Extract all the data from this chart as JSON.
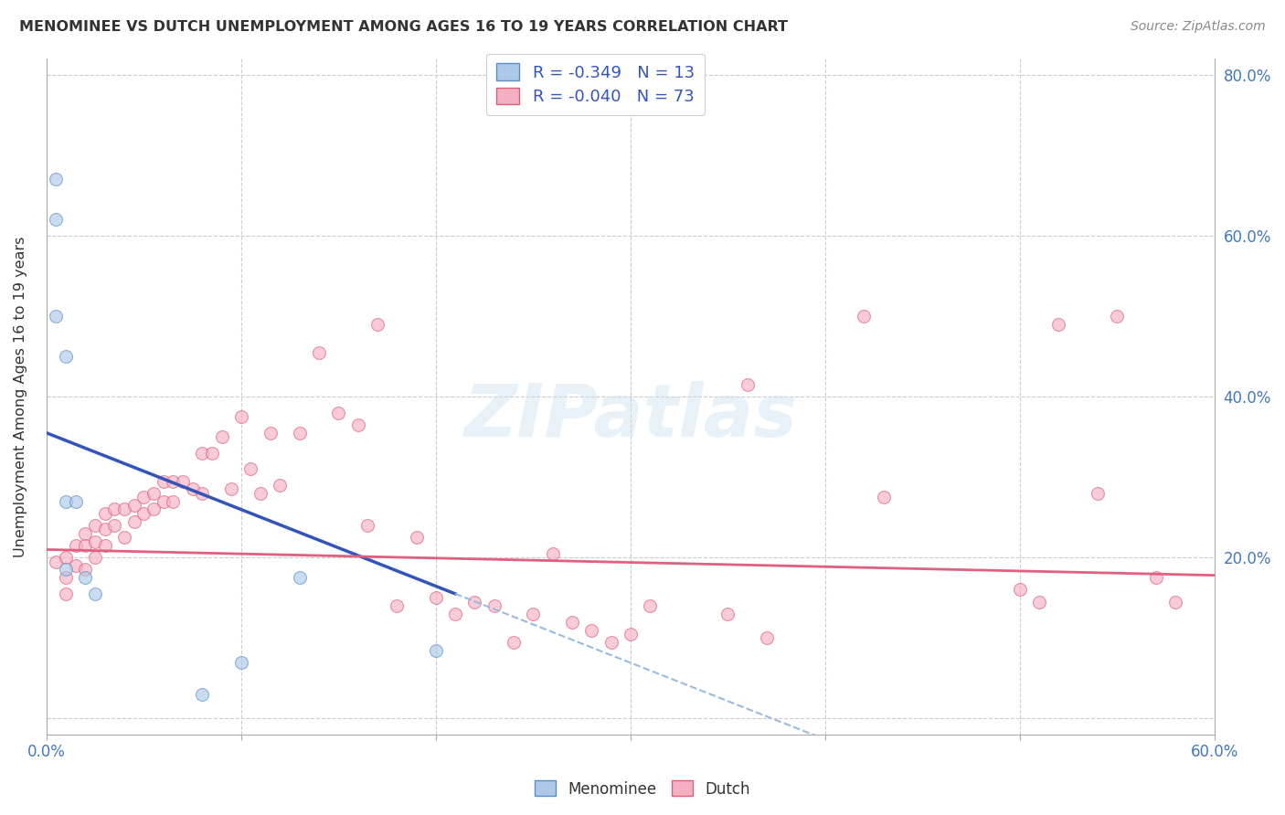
{
  "title": "MENOMINEE VS DUTCH UNEMPLOYMENT AMONG AGES 16 TO 19 YEARS CORRELATION CHART",
  "source": "Source: ZipAtlas.com",
  "ylabel": "Unemployment Among Ages 16 to 19 years",
  "xlim": [
    0.0,
    0.6
  ],
  "ylim": [
    -0.02,
    0.82
  ],
  "x_ticks": [
    0.0,
    0.1,
    0.2,
    0.3,
    0.4,
    0.5,
    0.6
  ],
  "y_ticks": [
    0.0,
    0.2,
    0.4,
    0.6,
    0.8
  ],
  "y_tick_labels_right": [
    "",
    "20.0%",
    "40.0%",
    "60.0%",
    "80.0%"
  ],
  "menominee_color": "#adc8e8",
  "dutch_color": "#f5afc3",
  "menominee_edge": "#5b8ec4",
  "dutch_edge": "#d9607a",
  "trend_menominee_color": "#3355bb",
  "trend_dutch_color": "#e06080",
  "trend_menominee_extra_color": "#99bbdd",
  "legend_R_menominee": "-0.349",
  "legend_N_menominee": "13",
  "legend_R_dutch": "-0.040",
  "legend_N_dutch": "73",
  "watermark_text": "ZIPatlas",
  "menominee_x": [
    0.005,
    0.005,
    0.005,
    0.01,
    0.01,
    0.01,
    0.015,
    0.02,
    0.025,
    0.08,
    0.1,
    0.13,
    0.2
  ],
  "menominee_y": [
    0.67,
    0.62,
    0.5,
    0.45,
    0.27,
    0.185,
    0.27,
    0.175,
    0.155,
    0.03,
    0.07,
    0.175,
    0.085
  ],
  "dutch_x": [
    0.005,
    0.01,
    0.01,
    0.01,
    0.015,
    0.015,
    0.02,
    0.02,
    0.02,
    0.025,
    0.025,
    0.025,
    0.03,
    0.03,
    0.03,
    0.035,
    0.035,
    0.04,
    0.04,
    0.045,
    0.045,
    0.05,
    0.05,
    0.055,
    0.055,
    0.06,
    0.06,
    0.065,
    0.065,
    0.07,
    0.075,
    0.08,
    0.08,
    0.085,
    0.09,
    0.095,
    0.1,
    0.105,
    0.11,
    0.115,
    0.12,
    0.13,
    0.14,
    0.15,
    0.16,
    0.165,
    0.17,
    0.18,
    0.19,
    0.2,
    0.21,
    0.22,
    0.23,
    0.24,
    0.25,
    0.26,
    0.27,
    0.28,
    0.29,
    0.3,
    0.31,
    0.35,
    0.36,
    0.37,
    0.42,
    0.43,
    0.5,
    0.51,
    0.52,
    0.54,
    0.55,
    0.57,
    0.58
  ],
  "dutch_y": [
    0.195,
    0.2,
    0.175,
    0.155,
    0.215,
    0.19,
    0.23,
    0.215,
    0.185,
    0.24,
    0.22,
    0.2,
    0.255,
    0.235,
    0.215,
    0.26,
    0.24,
    0.26,
    0.225,
    0.265,
    0.245,
    0.275,
    0.255,
    0.28,
    0.26,
    0.295,
    0.27,
    0.295,
    0.27,
    0.295,
    0.285,
    0.33,
    0.28,
    0.33,
    0.35,
    0.285,
    0.375,
    0.31,
    0.28,
    0.355,
    0.29,
    0.355,
    0.455,
    0.38,
    0.365,
    0.24,
    0.49,
    0.14,
    0.225,
    0.15,
    0.13,
    0.145,
    0.14,
    0.095,
    0.13,
    0.205,
    0.12,
    0.11,
    0.095,
    0.105,
    0.14,
    0.13,
    0.415,
    0.1,
    0.5,
    0.275,
    0.16,
    0.145,
    0.49,
    0.28,
    0.5,
    0.175,
    0.145
  ],
  "marker_size": 100,
  "alpha": 0.65,
  "trend_men_x0": 0.0,
  "trend_men_y0": 0.355,
  "trend_men_x1": 0.21,
  "trend_men_y1": 0.155,
  "trend_men_solid_end": 0.215,
  "trend_men_extra_end": 0.5,
  "trend_dut_x0": 0.0,
  "trend_dut_y0": 0.21,
  "trend_dut_x1": 0.6,
  "trend_dut_y1": 0.178
}
